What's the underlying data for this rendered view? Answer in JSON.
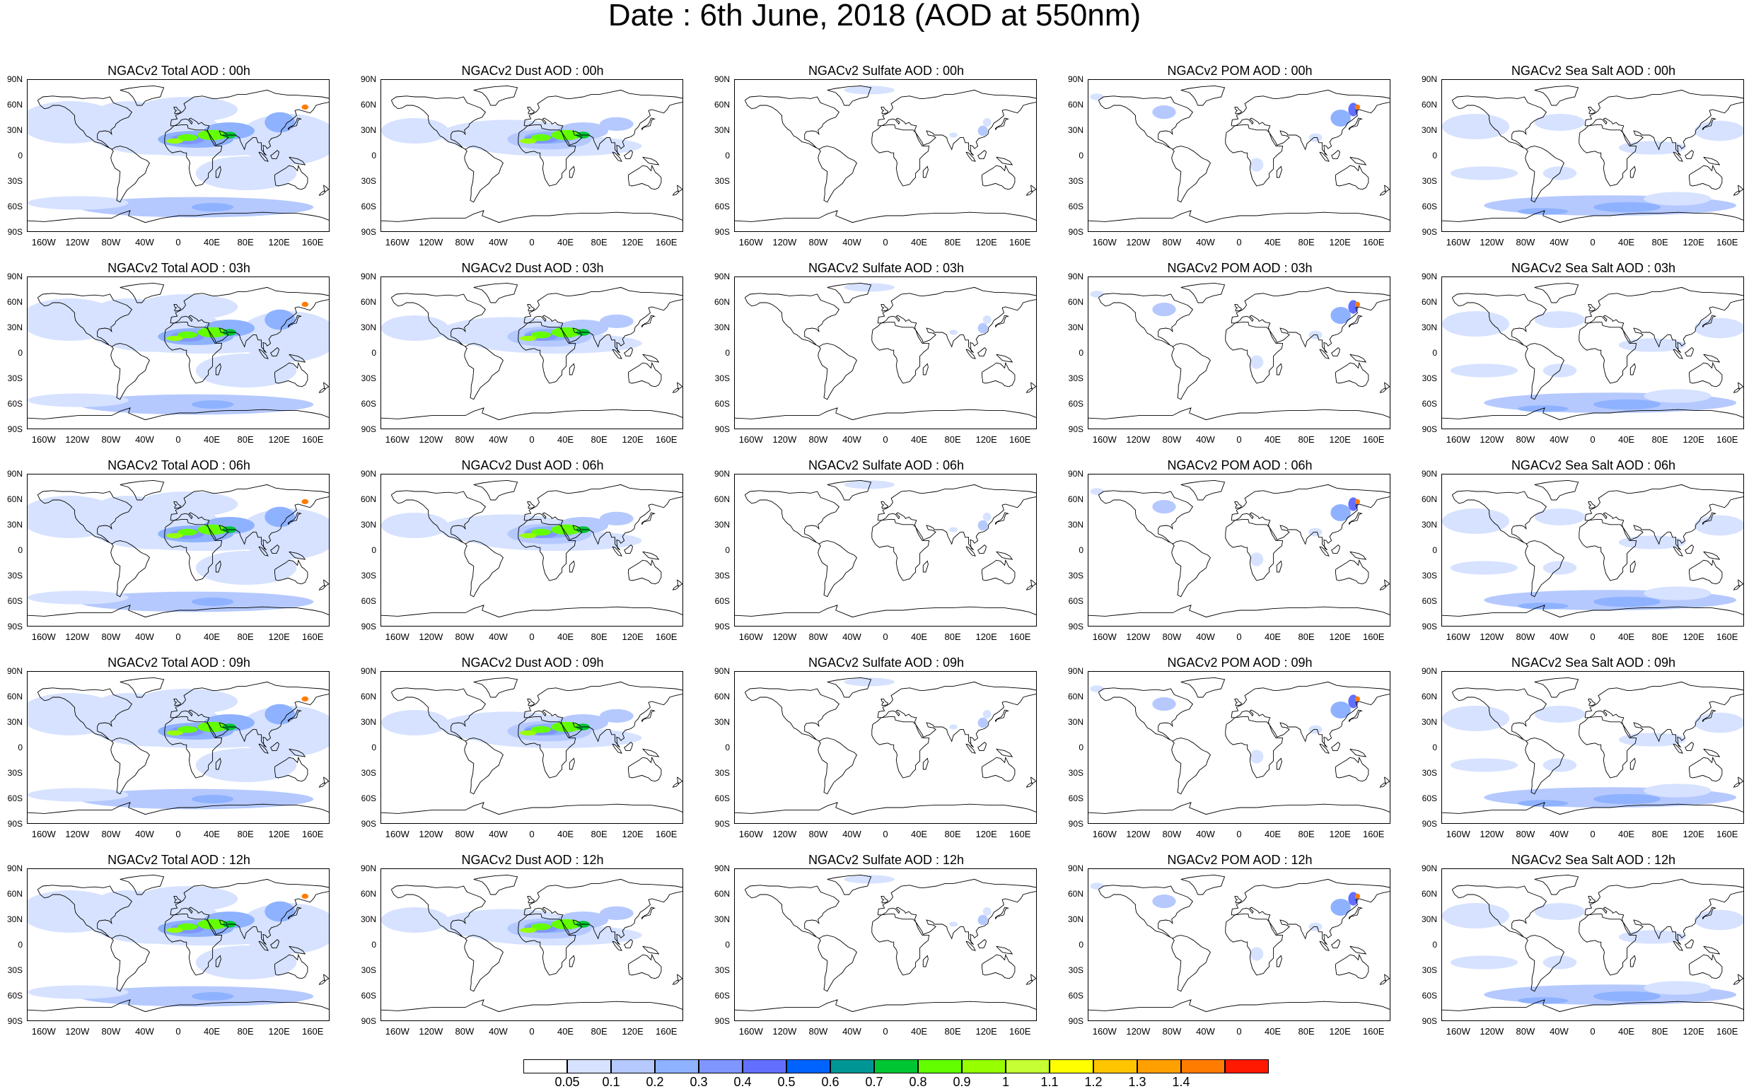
{
  "title": "Date : 6th June, 2018 (AOD at 550nm)",
  "lat_labels": [
    "90N",
    "60N",
    "30N",
    "0",
    "30S",
    "60S",
    "90S"
  ],
  "lon_labels": [
    "160W",
    "120W",
    "80W",
    "40W",
    "0",
    "40E",
    "80E",
    "120E",
    "160E"
  ],
  "panels": [
    {
      "title": "NGACv2 Total AOD : 00h",
      "species": "total",
      "hour": "00h"
    },
    {
      "title": "NGACv2 Dust AOD : 00h",
      "species": "dust",
      "hour": "00h"
    },
    {
      "title": "NGACv2 Sulfate AOD : 00h",
      "species": "sulfate",
      "hour": "00h"
    },
    {
      "title": "NGACv2 POM AOD : 00h",
      "species": "pom",
      "hour": "00h"
    },
    {
      "title": "NGACv2 Sea Salt AOD : 00h",
      "species": "seasalt",
      "hour": "00h"
    },
    {
      "title": "NGACv2 Total AOD : 03h",
      "species": "total",
      "hour": "03h"
    },
    {
      "title": "NGACv2 Dust AOD : 03h",
      "species": "dust",
      "hour": "03h"
    },
    {
      "title": "NGACv2 Sulfate AOD : 03h",
      "species": "sulfate",
      "hour": "03h"
    },
    {
      "title": "NGACv2 POM AOD : 03h",
      "species": "pom",
      "hour": "03h"
    },
    {
      "title": "NGACv2 Sea Salt AOD : 03h",
      "species": "seasalt",
      "hour": "03h"
    },
    {
      "title": "NGACv2 Total AOD : 06h",
      "species": "total",
      "hour": "06h"
    },
    {
      "title": "NGACv2 Dust AOD : 06h",
      "species": "dust",
      "hour": "06h"
    },
    {
      "title": "NGACv2 Sulfate AOD : 06h",
      "species": "sulfate",
      "hour": "06h"
    },
    {
      "title": "NGACv2 POM AOD : 06h",
      "species": "pom",
      "hour": "06h"
    },
    {
      "title": "NGACv2 Sea Salt AOD : 06h",
      "species": "seasalt",
      "hour": "06h"
    },
    {
      "title": "NGACv2 Total AOD : 09h",
      "species": "total",
      "hour": "09h"
    },
    {
      "title": "NGACv2 Dust AOD : 09h",
      "species": "dust",
      "hour": "09h"
    },
    {
      "title": "NGACv2 Sulfate AOD : 09h",
      "species": "sulfate",
      "hour": "09h"
    },
    {
      "title": "NGACv2 POM AOD : 09h",
      "species": "pom",
      "hour": "09h"
    },
    {
      "title": "NGACv2 Sea Salt  AOD : 09h",
      "species": "seasalt",
      "hour": "09h"
    },
    {
      "title": "NGACv2 Total AOD :  12h",
      "species": "total",
      "hour": "12h"
    },
    {
      "title": "NGACv2 Dust AOD : 12h",
      "species": "dust",
      "hour": "12h"
    },
    {
      "title": "NGACv2 Sulfate AOD : 12h",
      "species": "sulfate",
      "hour": "12h"
    },
    {
      "title": "NGACv2 POM  AOD : 12h",
      "species": "pom",
      "hour": "12h"
    },
    {
      "title": "NGACv2 Sea Salt  AOD : 12h",
      "species": "seasalt",
      "hour": "12h"
    }
  ],
  "colorbar": {
    "labels": [
      "0.05",
      "0.1",
      "0.2",
      "0.3",
      "0.4",
      "0.5",
      "0.6",
      "0.7",
      "0.8",
      "0.9",
      "1",
      "1.1",
      "1.2",
      "1.3",
      "1.4"
    ],
    "colors": [
      "#ffffff",
      "#d6e2ff",
      "#b5c9ff",
      "#8eb2ff",
      "#7f96ff",
      "#6370ff",
      "#0063ff",
      "#009696",
      "#00c633",
      "#63ff00",
      "#96ff00",
      "#c6ff33",
      "#ffff00",
      "#ffc600",
      "#ffa000",
      "#ff7c00",
      "#ff1900"
    ]
  },
  "map_colors": {
    "land_outline": "#000000",
    "low_aod": "#d6e2ff",
    "moderate_aod": "#b5c9ff",
    "high_aod": "#8eb2ff",
    "dust_core": "#63ff00"
  }
}
